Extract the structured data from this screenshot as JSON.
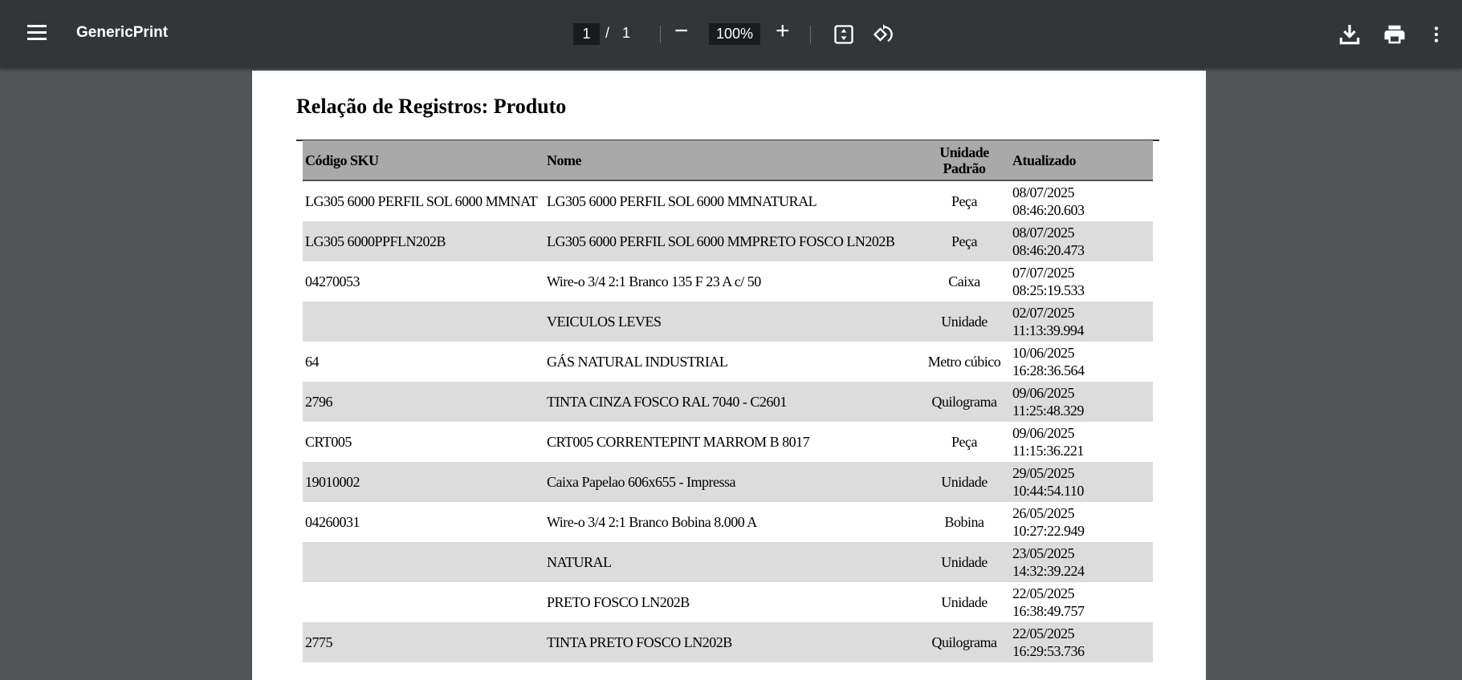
{
  "toolbar": {
    "title": "GenericPrint",
    "page_current": "1",
    "page_separator": "/",
    "page_total": "1",
    "zoom": "100%",
    "zoom_out_label": "−",
    "zoom_in_label": "+",
    "icons": [
      "menu-icon",
      "zoom-out-icon",
      "zoom-in-icon",
      "fit-page-icon",
      "rotate-icon",
      "download-icon",
      "print-icon",
      "more-vert-icon"
    ]
  },
  "document": {
    "title": "Relação de Registros: Produto",
    "columns": [
      "Código SKU",
      "Nome",
      "Unidade Padrão",
      "Atualizado"
    ],
    "rows": [
      {
        "sku": "LG305 6000 PERFIL SOL 6000 MMNAT",
        "nome": "LG305 6000 PERFIL SOL 6000 MMNATURAL",
        "unidade": "Peça",
        "data": "08/07/2025",
        "hora": "08:46:20.603"
      },
      {
        "sku": "LG305 6000PPFLN202B",
        "nome": "LG305 6000 PERFIL SOL 6000 MMPRETO FOSCO LN202B",
        "unidade": "Peça",
        "data": "08/07/2025",
        "hora": "08:46:20.473"
      },
      {
        "sku": "04270053",
        "nome": "Wire-o 3/4 2:1 Branco 135 F 23 A c/ 50",
        "unidade": "Caixa",
        "data": "07/07/2025",
        "hora": "08:25:19.533"
      },
      {
        "sku": "",
        "nome": "VEICULOS LEVES",
        "unidade": "Unidade",
        "data": "02/07/2025",
        "hora": "11:13:39.994"
      },
      {
        "sku": "64",
        "nome": "GÁS NATURAL INDUSTRIAL",
        "unidade": "Metro cúbico",
        "data": "10/06/2025",
        "hora": "16:28:36.564"
      },
      {
        "sku": "2796",
        "nome": "TINTA CINZA FOSCO RAL 7040 - C2601",
        "unidade": "Quilograma",
        "data": "09/06/2025",
        "hora": "11:25:48.329"
      },
      {
        "sku": "CRT005",
        "nome": "CRT005 CORRENTEPINT MARROM B 8017",
        "unidade": "Peça",
        "data": "09/06/2025",
        "hora": "11:15:36.221"
      },
      {
        "sku": "19010002",
        "nome": "Caixa Papelao 606x655 - Impressa",
        "unidade": "Unidade",
        "data": "29/05/2025",
        "hora": "10:44:54.110"
      },
      {
        "sku": "04260031",
        "nome": "Wire-o 3/4 2:1 Branco Bobina 8.000 A",
        "unidade": "Bobina",
        "data": "26/05/2025",
        "hora": "10:27:22.949"
      },
      {
        "sku": "",
        "nome": "NATURAL",
        "unidade": "Unidade",
        "data": "23/05/2025",
        "hora": "14:32:39.224"
      },
      {
        "sku": "",
        "nome": "PRETO FOSCO LN202B",
        "unidade": "Unidade",
        "data": "22/05/2025",
        "hora": "16:38:49.757"
      },
      {
        "sku": "2775",
        "nome": "TINTA PRETO FOSCO LN202B",
        "unidade": "Quilograma",
        "data": "22/05/2025",
        "hora": "16:29:53.736"
      }
    ]
  },
  "colors": {
    "toolbar": "#323639",
    "viewer_bg": "#525659",
    "header_bg": "#a9a9a9",
    "stripe": "#dcdcdc"
  }
}
